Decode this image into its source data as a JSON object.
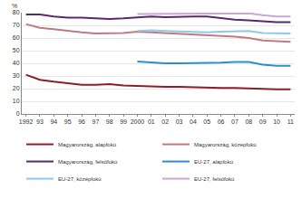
{
  "chart_data": {
    "type": "line",
    "ylabel": "%",
    "categories": [
      "1992",
      "93",
      "94",
      "95",
      "96",
      "97",
      "98",
      "99",
      "2000",
      "01",
      "02",
      "03",
      "04",
      "05",
      "06",
      "07",
      "08",
      "09",
      "10",
      "11"
    ],
    "ylim": [
      0,
      80
    ],
    "yticks": [
      0,
      10,
      20,
      30,
      40,
      50,
      60,
      70,
      80
    ],
    "grid": true,
    "legend": "bottom",
    "series": [
      {
        "name": "Magyarország, alapfokú",
        "color": "#8b1e2b",
        "values": [
          31,
          27,
          25.5,
          24,
          23,
          23,
          23.5,
          22.5,
          22,
          22,
          21.5,
          21.5,
          21,
          21,
          20.5,
          20.5,
          20,
          19.5,
          19.5,
          19.5
        ]
      },
      {
        "name": "Magyarország, középfokú",
        "color": "#c07a80",
        "values": [
          71,
          68,
          67,
          65.5,
          64.5,
          63.5,
          63.5,
          64,
          65,
          64.5,
          64,
          63.5,
          63,
          62.5,
          62,
          61,
          60,
          58,
          57.5,
          57
        ]
      },
      {
        "name": "Magyarország, felsőfokú",
        "color": "#5b2a6e",
        "values": [
          78.5,
          78.5,
          77,
          76,
          76,
          75.5,
          75,
          75.5,
          76,
          77,
          76.5,
          77,
          77,
          77,
          75.5,
          74.5,
          74,
          73,
          72.5,
          72.5
        ]
      },
      {
        "name": "EU-27, alapfokú",
        "color": "#2a8fcf",
        "values": [
          null,
          null,
          null,
          null,
          null,
          null,
          null,
          null,
          41.5,
          40.5,
          40,
          40,
          40,
          40,
          40.5,
          41,
          41,
          39,
          38,
          38
        ]
      },
      {
        "name": "EU-27, középfokú",
        "color": "#8fc8e8",
        "values": [
          null,
          null,
          null,
          null,
          null,
          null,
          null,
          null,
          65.5,
          66,
          65.5,
          65,
          64.5,
          64.5,
          65,
          65.5,
          65.5,
          64,
          63.5,
          63.5
        ]
      },
      {
        "name": "EU-27, felsőfokú",
        "color": "#c9a8d2",
        "values": [
          null,
          null,
          null,
          null,
          null,
          null,
          null,
          null,
          79,
          79,
          79,
          79,
          79,
          79,
          79.5,
          79.5,
          79.5,
          78,
          77,
          77
        ]
      }
    ]
  }
}
